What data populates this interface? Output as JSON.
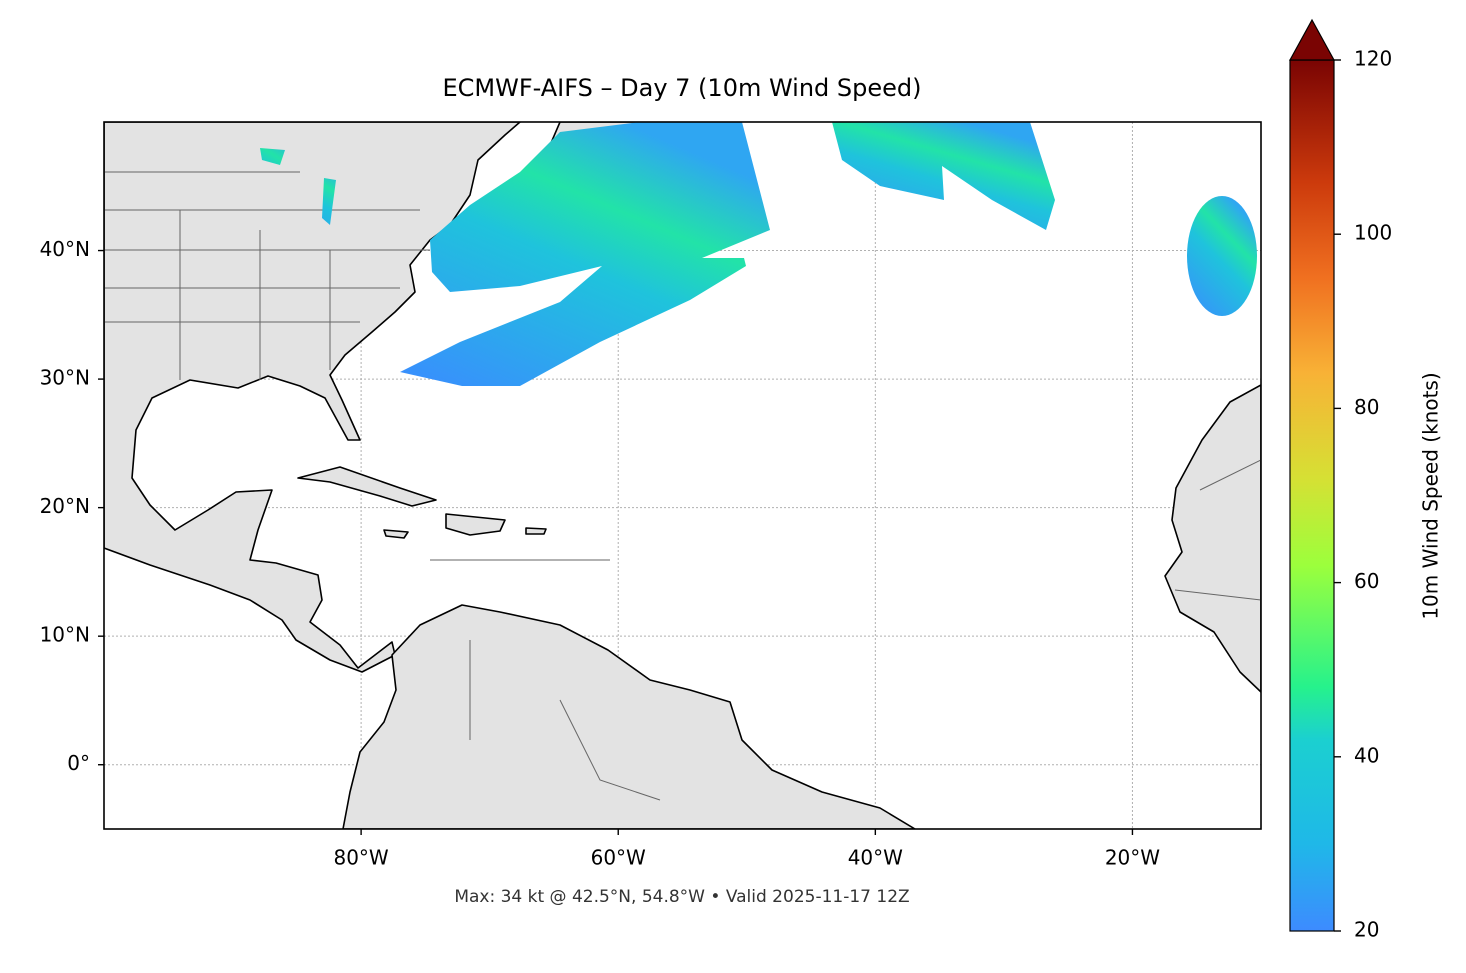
{
  "chart_data": {
    "type": "map",
    "title": "ECMWF-AIFS – Day 7 (10m Wind Speed)",
    "subtitle": "Max: 34 kt @ 42.5°N, 54.8°W • Valid 2025-11-17 12Z",
    "xlim": [
      -100,
      -10
    ],
    "ylim": [
      -5,
      50
    ],
    "xticks": [
      {
        "value": -80,
        "label": "80°W"
      },
      {
        "value": -60,
        "label": "60°W"
      },
      {
        "value": -40,
        "label": "40°W"
      },
      {
        "value": -20,
        "label": "20°W"
      }
    ],
    "yticks": [
      {
        "value": 0,
        "label": "0°"
      },
      {
        "value": 10,
        "label": "10°N"
      },
      {
        "value": 20,
        "label": "20°N"
      },
      {
        "value": 30,
        "label": "30°N"
      },
      {
        "value": 40,
        "label": "40°N"
      }
    ],
    "grid": true,
    "colorbar": {
      "label": "10m Wind Speed (knots)",
      "lim": [
        20,
        120
      ],
      "ticks": [
        20,
        40,
        60,
        80,
        100,
        120
      ]
    }
  }
}
